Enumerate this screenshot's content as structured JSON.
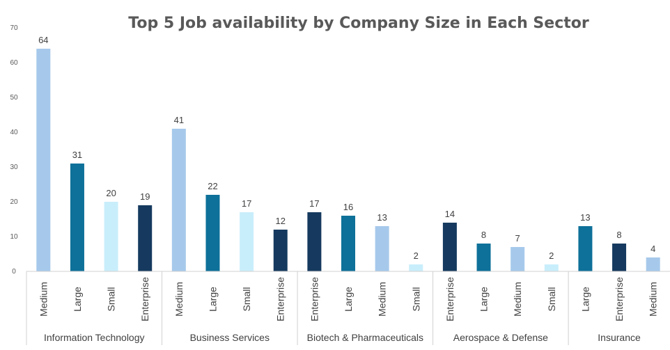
{
  "chart_data": {
    "type": "bar",
    "title": "Top 5 Job availability  by Company Size in Each Sector",
    "ylim": [
      0,
      70
    ],
    "yticks": [
      0,
      10,
      20,
      30,
      40,
      50,
      60,
      70
    ],
    "grid": false,
    "legend": "none",
    "colors": {
      "Medium": "#a6c9eb",
      "Large": "#0e7199",
      "Small": "#c9eefb",
      "Enterprise": "#163a5f"
    },
    "groups": [
      {
        "sector": "Information Technology",
        "bars": [
          {
            "size": "Medium",
            "value": 64
          },
          {
            "size": "Large",
            "value": 31
          },
          {
            "size": "Small",
            "value": 20
          },
          {
            "size": "Enterprise",
            "value": 19
          }
        ]
      },
      {
        "sector": "Business Services",
        "bars": [
          {
            "size": "Medium",
            "value": 41
          },
          {
            "size": "Large",
            "value": 22
          },
          {
            "size": "Small",
            "value": 17
          },
          {
            "size": "Enterprise",
            "value": 12
          }
        ]
      },
      {
        "sector": "Biotech & Pharmaceuticals",
        "bars": [
          {
            "size": "Enterprise",
            "value": 17
          },
          {
            "size": "Large",
            "value": 16
          },
          {
            "size": "Medium",
            "value": 13
          },
          {
            "size": "Small",
            "value": 2
          }
        ]
      },
      {
        "sector": "Aerospace & Defense",
        "bars": [
          {
            "size": "Enterprise",
            "value": 14
          },
          {
            "size": "Large",
            "value": 8
          },
          {
            "size": "Medium",
            "value": 7
          },
          {
            "size": "Small",
            "value": 2
          }
        ]
      },
      {
        "sector": "Insurance",
        "bars": [
          {
            "size": "Large",
            "value": 13
          },
          {
            "size": "Enterprise",
            "value": 8
          },
          {
            "size": "Medium",
            "value": 4
          }
        ]
      }
    ]
  }
}
